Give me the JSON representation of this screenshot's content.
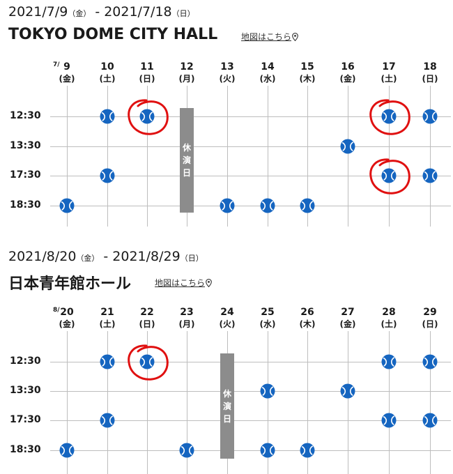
{
  "sections": [
    {
      "start_date": "2021/7/9",
      "start_wd": "（金）",
      "dash": "-",
      "end_date": "2021/7/18",
      "end_wd": "（日）",
      "venue": "TOKYO DOME CITY HALL",
      "map_link": "地図はこちら",
      "month_label": "7/",
      "days": [
        {
          "d": "9",
          "w": "(金)"
        },
        {
          "d": "10",
          "w": "(土)"
        },
        {
          "d": "11",
          "w": "(日)"
        },
        {
          "d": "12",
          "w": "(月)"
        },
        {
          "d": "13",
          "w": "(火)"
        },
        {
          "d": "14",
          "w": "(水)"
        },
        {
          "d": "15",
          "w": "(木)"
        },
        {
          "d": "16",
          "w": "(金)"
        },
        {
          "d": "17",
          "w": "(土)"
        },
        {
          "d": "18",
          "w": "(日)"
        }
      ],
      "times": [
        "12:30",
        "13:30",
        "17:30",
        "18:30"
      ],
      "shows": [
        [
          1,
          0
        ],
        [
          2,
          0
        ],
        [
          8,
          0
        ],
        [
          9,
          0
        ],
        [
          7,
          1
        ],
        [
          1,
          2
        ],
        [
          8,
          2
        ],
        [
          9,
          2
        ],
        [
          0,
          3
        ],
        [
          4,
          3
        ],
        [
          5,
          3
        ],
        [
          6,
          3
        ]
      ],
      "circled": [
        [
          2,
          0
        ],
        [
          8,
          0
        ],
        [
          8,
          2
        ]
      ],
      "rest_day_col": 3,
      "rest_label": [
        "休",
        "演",
        "日"
      ]
    },
    {
      "start_date": "2021/8/20",
      "start_wd": "（金）",
      "dash": "-",
      "end_date": "2021/8/29",
      "end_wd": "（日）",
      "venue": "日本青年館ホール",
      "map_link": "地図はこちら",
      "month_label": "8/",
      "days": [
        {
          "d": "20",
          "w": "(金)"
        },
        {
          "d": "21",
          "w": "(土)"
        },
        {
          "d": "22",
          "w": "(日)"
        },
        {
          "d": "23",
          "w": "(月)"
        },
        {
          "d": "24",
          "w": "(火)"
        },
        {
          "d": "25",
          "w": "(水)"
        },
        {
          "d": "26",
          "w": "(木)"
        },
        {
          "d": "27",
          "w": "(金)"
        },
        {
          "d": "28",
          "w": "(土)"
        },
        {
          "d": "29",
          "w": "(日)"
        }
      ],
      "times": [
        "12:30",
        "13:30",
        "17:30",
        "18:30"
      ],
      "shows": [
        [
          1,
          0
        ],
        [
          2,
          0
        ],
        [
          8,
          0
        ],
        [
          9,
          0
        ],
        [
          5,
          1
        ],
        [
          7,
          1
        ],
        [
          1,
          2
        ],
        [
          8,
          2
        ],
        [
          9,
          2
        ],
        [
          0,
          3
        ],
        [
          3,
          3
        ],
        [
          5,
          3
        ],
        [
          6,
          3
        ]
      ],
      "circled": [
        [
          2,
          0
        ]
      ],
      "rest_day_col": 4,
      "rest_label": [
        "休",
        "演",
        "日"
      ]
    }
  ],
  "colors": {
    "ball": "#1565c0",
    "rest": "#8c8c8c",
    "mark": "#e01010",
    "grid": "#bdbdbd"
  },
  "icons": {
    "map": "map-pin-icon",
    "show": "ball-icon"
  }
}
